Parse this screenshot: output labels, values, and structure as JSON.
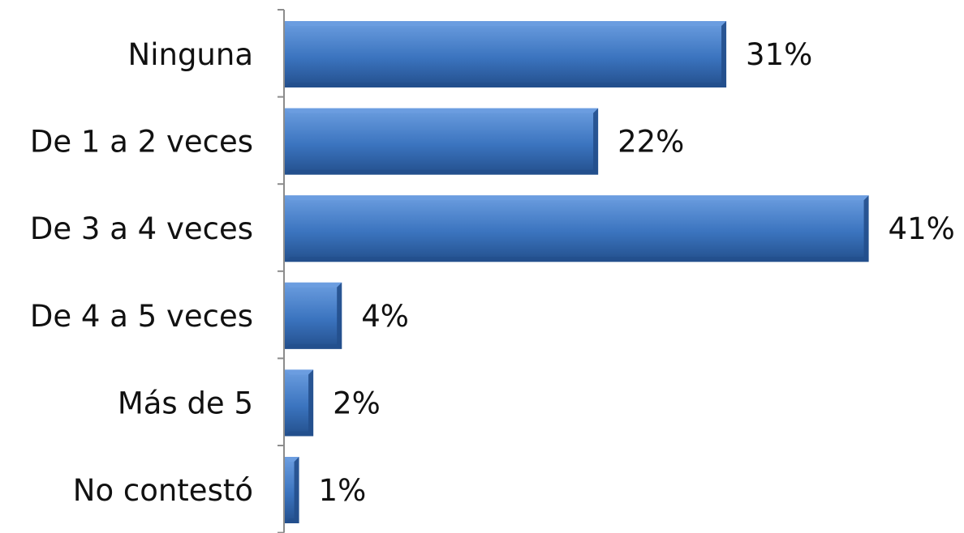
{
  "chart_data": {
    "type": "bar",
    "orientation": "horizontal",
    "categories": [
      "Ninguna",
      "De 1 a 2 veces",
      "De 3 a 4 veces",
      "De 4 a 5 veces",
      "Más de 5",
      "No contestó"
    ],
    "values": [
      31,
      22,
      41,
      4,
      2,
      1
    ],
    "data_labels": [
      "31%",
      "22%",
      "41%",
      "4%",
      "2%",
      "1%"
    ],
    "title": "",
    "xlabel": "",
    "ylabel": "",
    "xlim": [
      0,
      41
    ],
    "grid": false,
    "legend": "none",
    "colors": {
      "bar_fill": "#3b74bf",
      "bar_light": "#6c9ee0",
      "bar_dark": "#234f8c",
      "axis": "#8c8c8c",
      "text": "#111111"
    }
  }
}
